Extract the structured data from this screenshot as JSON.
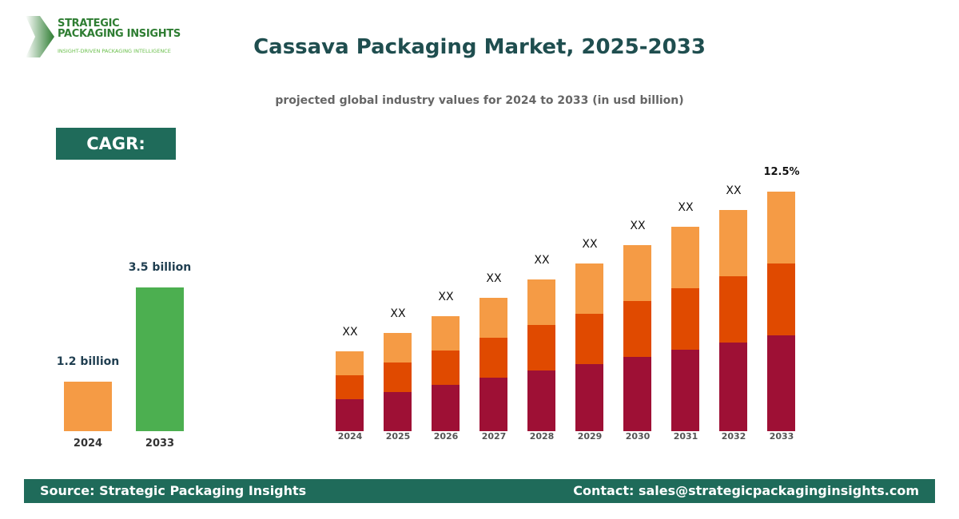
{
  "brand": {
    "line1": "STRATEGIC",
    "line2": "PACKAGING INSIGHTS",
    "tagline": "INSIGHT-DRIVEN PACKAGING INTELLIGENCE"
  },
  "title": "Cassava Packaging Market, 2025-2033",
  "subtitle": "projected global industry values for 2024 to 2033 (in usd billion)",
  "cagr": "CAGR: 12.5%",
  "chart_data": [
    {
      "type": "bar",
      "categories": [
        "2024",
        "2033"
      ],
      "values": [
        1.2,
        3.5
      ],
      "data_labels": [
        "1.2 billion",
        "3.5 billion"
      ],
      "colors": [
        "#f59b45",
        "#4caf50"
      ]
    },
    {
      "type": "bar",
      "stacked": true,
      "categories": [
        "2024",
        "2025",
        "2026",
        "2027",
        "2028",
        "2029",
        "2030",
        "2031",
        "2032",
        "2033"
      ],
      "relative_totals": [
        100,
        123,
        144,
        167,
        190,
        210,
        233,
        256,
        277,
        300
      ],
      "segment_shares": [
        0.4,
        0.3,
        0.3
      ],
      "colors": [
        "#9e1035",
        "#e04a00",
        "#f59b45"
      ],
      "data_labels": [
        "XX",
        "XX",
        "XX",
        "XX",
        "XX",
        "XX",
        "XX",
        "XX",
        "XX",
        "12.5%"
      ]
    }
  ],
  "footer": {
    "source": "Source: Strategic Packaging Insights",
    "contact": "Contact: sales@strategicpackaginginsights.com"
  }
}
